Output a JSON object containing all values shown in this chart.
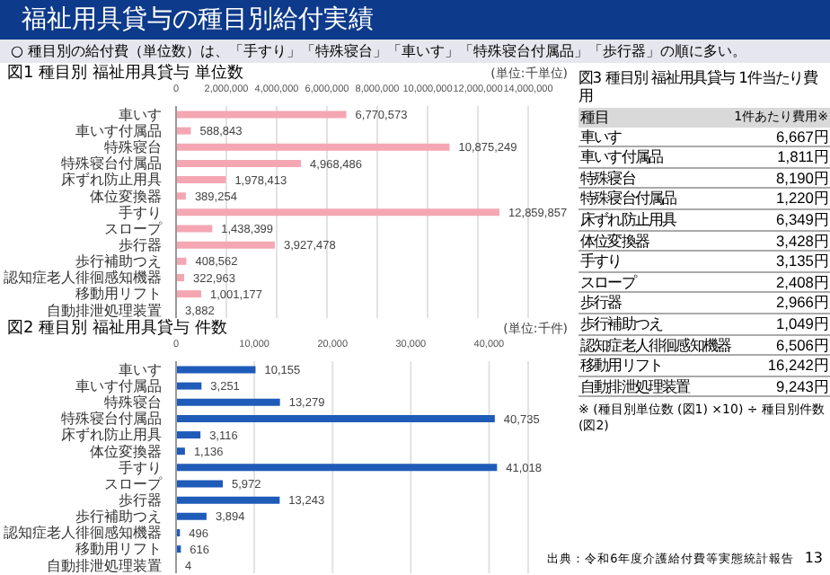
{
  "chart_data": [
    {
      "type": "bar",
      "orientation": "horizontal",
      "title": "図1 種目別 福祉用具貸与 単位数",
      "xlabel": "(単位:千単位)",
      "annotations": [
        "福祉用具貸与の種目別給付実績",
        "○ 種目別の給付費（単位数）は、「手すり」「特殊寝台」「車いす」「特殊寝台付属品」「歩行器」の順に多い。"
      ],
      "categories": [
        "車いす",
        "車いす付属品",
        "特殊寝台",
        "特殊寝台付属品",
        "床ずれ防止用具",
        "体位変換器",
        "手すり",
        "スロープ",
        "歩行器",
        "歩行補助つえ",
        "認知症老人徘徊感知機器",
        "移動用リフト",
        "自動排泄処理装置"
      ],
      "values": [
        6770573,
        588843,
        10875249,
        4968486,
        1978413,
        389254,
        12859857,
        1438399,
        3927478,
        408562,
        322963,
        1001177,
        3882
      ],
      "value_labels": [
        "6,770,573",
        "588,843",
        "10,875,249",
        "4,968,486",
        "1,978,413",
        "389,254",
        "12,859,857",
        "1,438,399",
        "3,927,478",
        "408,562",
        "322,963",
        "1,001,177",
        "3,882"
      ],
      "color": "#f4a7b2",
      "xlim": [
        0,
        14000000
      ],
      "xticks": [
        0,
        {
          "value": 2000000,
          "label": "2,000,000"
        },
        {
          "value": 4000000,
          "label": "4,000,000"
        },
        {
          "value": 6000000,
          "label": "6,000,000"
        },
        {
          "value": 8000000,
          "label": "8,000,000"
        },
        {
          "value": 10000000,
          "label": "10,000,000"
        },
        {
          "value": 12000000,
          "label": "12,000,000"
        },
        {
          "value": 14000000,
          "label": "14,000,000"
        }
      ],
      "grid": "x"
    },
    {
      "type": "bar",
      "orientation": "horizontal",
      "title": "図2 種目別 福祉用具貸与 件数",
      "xlabel": "(単位:千件)",
      "categories": [
        "車いす",
        "車いす付属品",
        "特殊寝台",
        "特殊寝台付属品",
        "床ずれ防止用具",
        "体位変換器",
        "手すり",
        "スロープ",
        "歩行器",
        "歩行補助つえ",
        "認知症老人徘徊感知機器",
        "移動用リフト",
        "自動排泄処理装置"
      ],
      "values": [
        10155,
        3251,
        13279,
        40735,
        3116,
        1136,
        41018,
        5972,
        13243,
        3894,
        496,
        616,
        4
      ],
      "value_labels": [
        "10,155",
        "3,251",
        "13,279",
        "40,735",
        "3,116",
        "1,136",
        "41,018",
        "5,972",
        "13,243",
        "3,894",
        "496",
        "616",
        "4"
      ],
      "color": "#1f5bb8",
      "xlim": [
        0,
        45000
      ],
      "xticks": [
        0,
        {
          "value": 10000,
          "label": "10,000"
        },
        {
          "value": 20000,
          "label": "20,000"
        },
        {
          "value": 30000,
          "label": "30,000"
        },
        {
          "value": 40000,
          "label": "40,000"
        }
      ],
      "grid": "x"
    },
    {
      "type": "other",
      "title": "図3 種目別 福祉用具貸与 1件当たり費用",
      "xlabel": "種目",
      "ylabel": "1件あたり費用※",
      "categories": [
        "車いす",
        "車いす付属品",
        "特殊寝台",
        "特殊寝台付属品",
        "床ずれ防止用具",
        "体位変換器",
        "手すり",
        "スロープ",
        "歩行器",
        "歩行補助つえ",
        "認知症老人徘徊感知機器",
        "移動用リフト",
        "自動排泄処理装置"
      ],
      "value_labels": [
        "6,667円",
        "1,811円",
        "8,190円",
        "1,220円",
        "6,349円",
        "3,428円",
        "3,135円",
        "2,408円",
        "2,966円",
        "1,049円",
        "6,506円",
        "16,242円",
        "9,243円"
      ],
      "annotations": [
        "※ (種目別単位数 (図1) ×10) ÷ 種目別件数 (図2)",
        "出典：令和6年度介護給付費等実態統計報告",
        "13"
      ]
    }
  ]
}
